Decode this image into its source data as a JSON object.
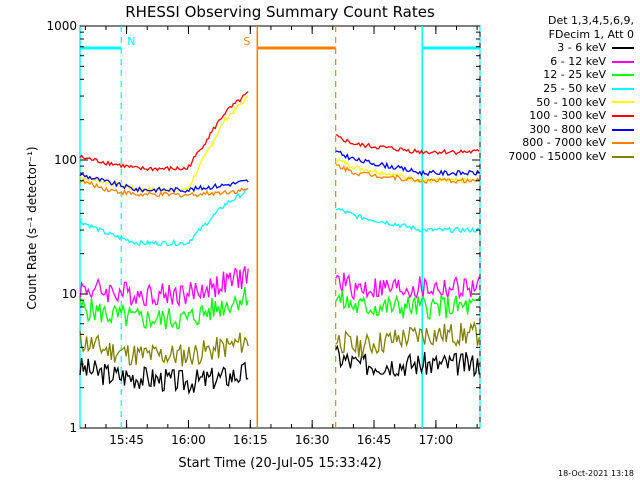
{
  "chart_data": {
    "type": "line",
    "title": "RHESSI Observing Summary Count Rates",
    "xlabel": "Start Time (20-Jul-05 15:33:42)",
    "ylabel": "Count Rate (s⁻¹ detector⁻¹)",
    "ylog": true,
    "ylim": [
      1,
      1000
    ],
    "xlim_minutes": [
      0,
      97
    ],
    "x_ticks": [
      "15:45",
      "16:00",
      "16:15",
      "16:30",
      "16:45",
      "17:00"
    ],
    "y_ticks": [
      "1",
      "10",
      "100",
      "1000"
    ],
    "grid": false,
    "legend_position": "right, outside plot",
    "legend_header": [
      "Det 1,3,4,5,6,9,",
      "FDecim 1, Att 0"
    ],
    "series": [
      {
        "name": "3 - 6 keV",
        "color": "#000000",
        "values": [
          2.8,
          2.5,
          2.4,
          2.2,
          2.6,
          3.0,
          3.0
        ]
      },
      {
        "name": "6 - 12 keV",
        "color": "#ff00ff",
        "values": [
          11,
          10.5,
          10,
          10,
          14,
          11,
          11
        ]
      },
      {
        "name": "12 - 25 keV",
        "color": "#00ff00",
        "values": [
          8,
          7,
          6.5,
          6.5,
          10,
          8,
          8
        ]
      },
      {
        "name": "25 - 50 keV",
        "color": "#00ffff",
        "values": [
          35,
          28,
          24,
          24,
          60,
          38,
          30
        ]
      },
      {
        "name": "50 - 100 keV",
        "color": "#ffff00",
        "values": [
          75,
          68,
          60,
          60,
          300,
          88,
          70
        ]
      },
      {
        "name": "100 - 300 keV",
        "color": "#ff0000",
        "values": [
          105,
          95,
          86,
          86,
          320,
          130,
          115
        ]
      },
      {
        "name": "300 - 800 keV",
        "color": "#0000ff",
        "values": [
          78,
          68,
          60,
          60,
          70,
          100,
          80
        ]
      },
      {
        "name": "800 - 7000 keV",
        "color": "#ff8000",
        "values": [
          70,
          60,
          55,
          55,
          60,
          80,
          70
        ]
      },
      {
        "name": "7000 - 15000 keV",
        "color": "#808000",
        "values": [
          4.5,
          3.8,
          3.5,
          3.5,
          4.5,
          4.0,
          5.0
        ]
      }
    ],
    "annotations": [
      {
        "label": "N",
        "color": "#00ffff",
        "start_min": 0,
        "end_min": 10,
        "meaning": "night interval"
      },
      {
        "label": "N",
        "color": "#00ffff",
        "start_min": 83,
        "end_min": 97,
        "meaning": "night interval"
      },
      {
        "label": "S",
        "color": "#ff8000",
        "start_min": 43,
        "end_min": 62,
        "meaning": "SAA interval"
      }
    ]
  },
  "footer": {
    "timestamp": "18-Oct-2021 13:18"
  }
}
